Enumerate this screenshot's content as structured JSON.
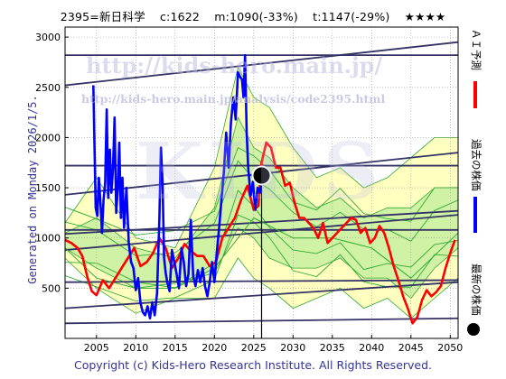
{
  "header": {
    "code_name": "2395=新日科学",
    "current": "c:1622",
    "min": "m:1090(-33%)",
    "target": "t:1147(-29%)",
    "stars": "★★★★"
  },
  "generated_label": "Generated on Monday 2026/1/5.",
  "copyright": "Copyright (c) Kids-Hero Research Institute. All Rights Reserved.",
  "watermark": {
    "url_big": "http://kids-hero.main.jp/",
    "url_small": "http://kids-hero.main.jp/analysis/code2395.html",
    "logo": "KIDS"
  },
  "legend": [
    {
      "label": "ＡＩ予測",
      "color": "#ff0000",
      "kind": "line"
    },
    {
      "label": "過去の株価",
      "color": "#0000ff",
      "kind": "line"
    },
    {
      "label": "最新の株価",
      "color": "#000000",
      "kind": "dot"
    }
  ],
  "colors": {
    "ai": "#ff0000",
    "past": "#0000ff",
    "band_light": "#ffffc0",
    "band_green": "#c8f0a0",
    "band_line": "#33aa33",
    "channel": "#333366"
  },
  "chart_data": {
    "type": "line",
    "xlim": [
      2001,
      2051
    ],
    "ylim": [
      0,
      3100
    ],
    "x_ticks": [
      2005,
      2010,
      2015,
      2020,
      2025,
      2030,
      2035,
      2040,
      2045,
      2050
    ],
    "y_ticks": [
      500,
      1000,
      1500,
      2000,
      2500,
      3000
    ],
    "grid": true,
    "latest": {
      "x": 2026.0,
      "y": 1622
    },
    "series": [
      {
        "name": "過去の株価",
        "x": [
          2004.6,
          2004.9,
          2005.1,
          2005.3,
          2005.5,
          2005.7,
          2005.9,
          2006.1,
          2006.3,
          2006.5,
          2006.7,
          2006.9,
          2007.1,
          2007.3,
          2007.5,
          2007.7,
          2007.9,
          2008.1,
          2008.3,
          2008.5,
          2008.8,
          2009.1,
          2009.4,
          2009.7,
          2010.0,
          2010.3,
          2010.6,
          2010.9,
          2011.2,
          2011.5,
          2011.8,
          2012.1,
          2012.4,
          2012.7,
          2013.0,
          2013.2,
          2013.4,
          2013.6,
          2013.8,
          2014.0,
          2014.3,
          2014.6,
          2014.9,
          2015.2,
          2015.5,
          2015.8,
          2016.1,
          2016.4,
          2016.7,
          2017.0,
          2017.3,
          2017.6,
          2017.9,
          2018.2,
          2018.5,
          2018.8,
          2019.1,
          2019.4,
          2019.7,
          2020.0,
          2020.3,
          2020.6,
          2020.9,
          2021.2,
          2021.5,
          2021.8,
          2022.1,
          2022.4,
          2022.7,
          2023.0,
          2023.3,
          2023.5,
          2023.7,
          2023.9,
          2024.1,
          2024.3,
          2024.6,
          2024.9,
          2025.2,
          2025.5,
          2025.8,
          2026.0
        ],
        "y": [
          2520,
          1300,
          1220,
          1600,
          1350,
          1050,
          1380,
          1550,
          2280,
          1400,
          1880,
          1450,
          1700,
          2200,
          1250,
          1480,
          1950,
          1200,
          1600,
          1100,
          1500,
          950,
          760,
          700,
          480,
          600,
          350,
          260,
          230,
          320,
          200,
          360,
          230,
          450,
          1200,
          1900,
          1550,
          800,
          650,
          560,
          470,
          880,
          760,
          640,
          500,
          900,
          760,
          520,
          640,
          1180,
          620,
          520,
          680,
          560,
          700,
          520,
          420,
          560,
          760,
          560,
          850,
          1100,
          1380,
          1650,
          2050,
          1700,
          2150,
          2400,
          2180,
          2650,
          2600,
          2580,
          2400,
          2820,
          2050,
          1700,
          1420,
          1560,
          1280,
          1500,
          1450,
          1622
        ]
      },
      {
        "name": "ＡＩ予測",
        "x": [
          2001.0,
          2001.8,
          2002.6,
          2003.2,
          2003.8,
          2004.4,
          2005.0,
          2005.8,
          2006.6,
          2007.4,
          2008.2,
          2009.0,
          2009.8,
          2010.6,
          2011.4,
          2012.2,
          2013.0,
          2013.8,
          2014.6,
          2015.4,
          2016.2,
          2017.0,
          2017.8,
          2018.6,
          2019.4,
          2020.2,
          2021.0,
          2021.8,
          2022.6,
          2023.4,
          2024.2,
          2025.0,
          2025.6,
          2026.0,
          2026.6,
          2027.2,
          2027.8,
          2028.4,
          2029.0,
          2029.6,
          2030.2,
          2030.8,
          2031.4,
          2032.0,
          2032.6,
          2033.2,
          2033.8,
          2034.4,
          2035.0,
          2035.6,
          2036.2,
          2036.8,
          2037.4,
          2038.0,
          2038.6,
          2039.2,
          2039.8,
          2040.4,
          2041.0,
          2041.6,
          2042.2,
          2042.8,
          2043.4,
          2044.0,
          2044.6,
          2045.2,
          2045.8,
          2046.4,
          2047.0,
          2047.6,
          2048.2,
          2048.8,
          2049.4,
          2050.0,
          2050.6
        ],
        "y": [
          980,
          950,
          900,
          820,
          620,
          470,
          430,
          580,
          500,
          600,
          700,
          800,
          900,
          720,
          760,
          850,
          1000,
          900,
          700,
          800,
          940,
          870,
          820,
          820,
          720,
          760,
          1000,
          1100,
          1200,
          1380,
          1520,
          1280,
          1320,
          1750,
          1950,
          1900,
          1700,
          1700,
          1520,
          1550,
          1350,
          1200,
          1200,
          1150,
          1100,
          1000,
          1150,
          950,
          1000,
          1050,
          1100,
          1150,
          1200,
          1180,
          1050,
          1100,
          950,
          1000,
          1120,
          1050,
          900,
          720,
          580,
          420,
          300,
          150,
          210,
          380,
          480,
          420,
          460,
          520,
          700,
          850,
          980
        ]
      },
      {
        "name": "",
        "x": [
          2001,
          2005,
          2010,
          2015,
          2020,
          2025,
          2030,
          2035,
          2040,
          2045,
          2051
        ],
        "y": [
          900,
          600,
          500,
          500,
          700,
          1200,
          1000,
          1000,
          900,
          600,
          1050
        ]
      }
    ],
    "band_outer_upper": [
      [
        2001,
        1150
      ],
      [
        2005,
        1600
      ],
      [
        2010,
        1000
      ],
      [
        2015,
        900
      ],
      [
        2020,
        1700
      ],
      [
        2023,
        2700
      ],
      [
        2025,
        2400
      ],
      [
        2027,
        2300
      ],
      [
        2030,
        1900
      ],
      [
        2033,
        1600
      ],
      [
        2036,
        1700
      ],
      [
        2039,
        1500
      ],
      [
        2042,
        1600
      ],
      [
        2045,
        1800
      ],
      [
        2048,
        2000
      ],
      [
        2051,
        2000
      ]
    ],
    "band_outer_lower": [
      [
        2001,
        800
      ],
      [
        2005,
        500
      ],
      [
        2010,
        250
      ],
      [
        2015,
        400
      ],
      [
        2020,
        400
      ],
      [
        2023,
        800
      ],
      [
        2025,
        600
      ],
      [
        2027,
        500
      ],
      [
        2030,
        300
      ],
      [
        2033,
        400
      ],
      [
        2036,
        500
      ],
      [
        2039,
        300
      ],
      [
        2042,
        400
      ],
      [
        2045,
        200
      ],
      [
        2048,
        400
      ],
      [
        2051,
        600
      ]
    ],
    "band_inner_upper": [
      [
        2001,
        1050
      ],
      [
        2005,
        1200
      ],
      [
        2010,
        900
      ],
      [
        2015,
        800
      ],
      [
        2020,
        1300
      ],
      [
        2023,
        2200
      ],
      [
        2025,
        1900
      ],
      [
        2027,
        1800
      ],
      [
        2030,
        1500
      ],
      [
        2033,
        1300
      ],
      [
        2036,
        1400
      ],
      [
        2039,
        1200
      ],
      [
        2042,
        1300
      ],
      [
        2045,
        1300
      ],
      [
        2048,
        1500
      ],
      [
        2051,
        1500
      ]
    ],
    "band_inner_lower": [
      [
        2001,
        900
      ],
      [
        2005,
        700
      ],
      [
        2010,
        500
      ],
      [
        2015,
        550
      ],
      [
        2020,
        650
      ],
      [
        2023,
        1100
      ],
      [
        2025,
        1000
      ],
      [
        2027,
        800
      ],
      [
        2030,
        700
      ],
      [
        2033,
        700
      ],
      [
        2036,
        800
      ],
      [
        2039,
        600
      ],
      [
        2042,
        600
      ],
      [
        2045,
        400
      ],
      [
        2048,
        700
      ],
      [
        2051,
        900
      ]
    ],
    "channels": [
      {
        "y0": 2820,
        "y1": 2820
      },
      {
        "y0": 2520,
        "y1": 2950
      },
      {
        "y0": 1720,
        "y1": 1720
      },
      {
        "y0": 1430,
        "y1": 1850
      },
      {
        "y0": 1080,
        "y1": 1080
      },
      {
        "y0": 1040,
        "y1": 1270
      },
      {
        "y0": 880,
        "y1": 1230
      },
      {
        "y0": 560,
        "y1": 580
      },
      {
        "y0": 300,
        "y1": 560
      },
      {
        "y0": 150,
        "y1": 200
      }
    ]
  }
}
